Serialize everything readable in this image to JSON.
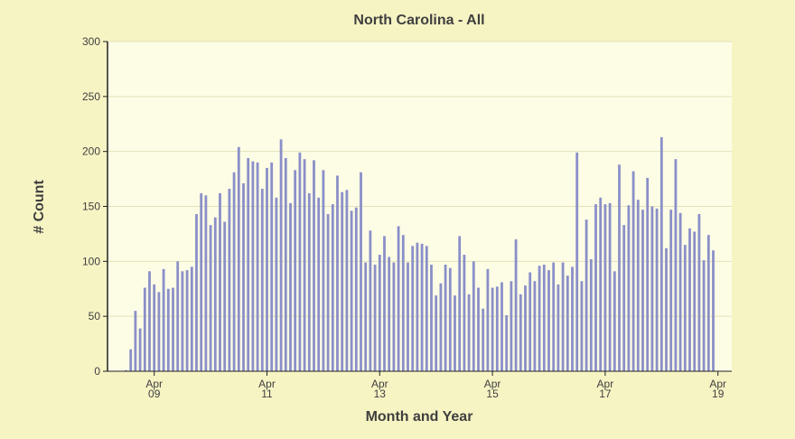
{
  "chart_data": {
    "type": "bar",
    "title": "North Carolina - All",
    "xlabel": "Month and Year",
    "ylabel": "# Count",
    "ylim": [
      0,
      300
    ],
    "yticks": [
      "0",
      "50",
      "100",
      "150",
      "200",
      "250",
      "300"
    ],
    "xticks": [
      {
        "month": "Apr",
        "year": "09",
        "index": 6
      },
      {
        "month": "Apr",
        "year": "11",
        "index": 30
      },
      {
        "month": "Apr",
        "year": "13",
        "index": 54
      },
      {
        "month": "Apr",
        "year": "15",
        "index": 78
      },
      {
        "month": "Apr",
        "year": "17",
        "index": 102
      },
      {
        "month": "Apr",
        "year": "19",
        "index": 126
      }
    ],
    "grid": true,
    "bar_color": "#8a8fc8",
    "plot_background": "#fdfde6",
    "page_background": "#f7f4c4",
    "values": [
      1,
      20,
      55,
      39,
      76,
      91,
      79,
      72,
      93,
      75,
      76,
      100,
      91,
      92,
      95,
      143,
      162,
      160,
      133,
      140,
      162,
      136,
      166,
      181,
      204,
      171,
      194,
      191,
      190,
      166,
      185,
      190,
      158,
      211,
      194,
      153,
      183,
      199,
      193,
      162,
      192,
      158,
      183,
      143,
      152,
      178,
      163,
      165,
      146,
      149,
      181,
      99,
      128,
      97,
      106,
      123,
      104,
      99,
      132,
      124,
      99,
      114,
      117,
      116,
      114,
      97,
      69,
      80,
      97,
      94,
      69,
      123,
      106,
      70,
      100,
      76,
      57,
      93,
      76,
      77,
      81,
      51,
      82,
      120,
      70,
      78,
      90,
      82,
      96,
      97,
      92,
      99,
      79,
      99,
      87,
      95,
      199,
      82,
      138,
      102,
      152,
      158,
      152,
      153,
      91,
      188,
      133,
      151,
      182,
      156,
      147,
      176,
      150,
      148,
      213,
      112,
      147,
      193,
      144,
      115,
      130,
      127,
      143,
      101,
      124,
      110
    ]
  }
}
